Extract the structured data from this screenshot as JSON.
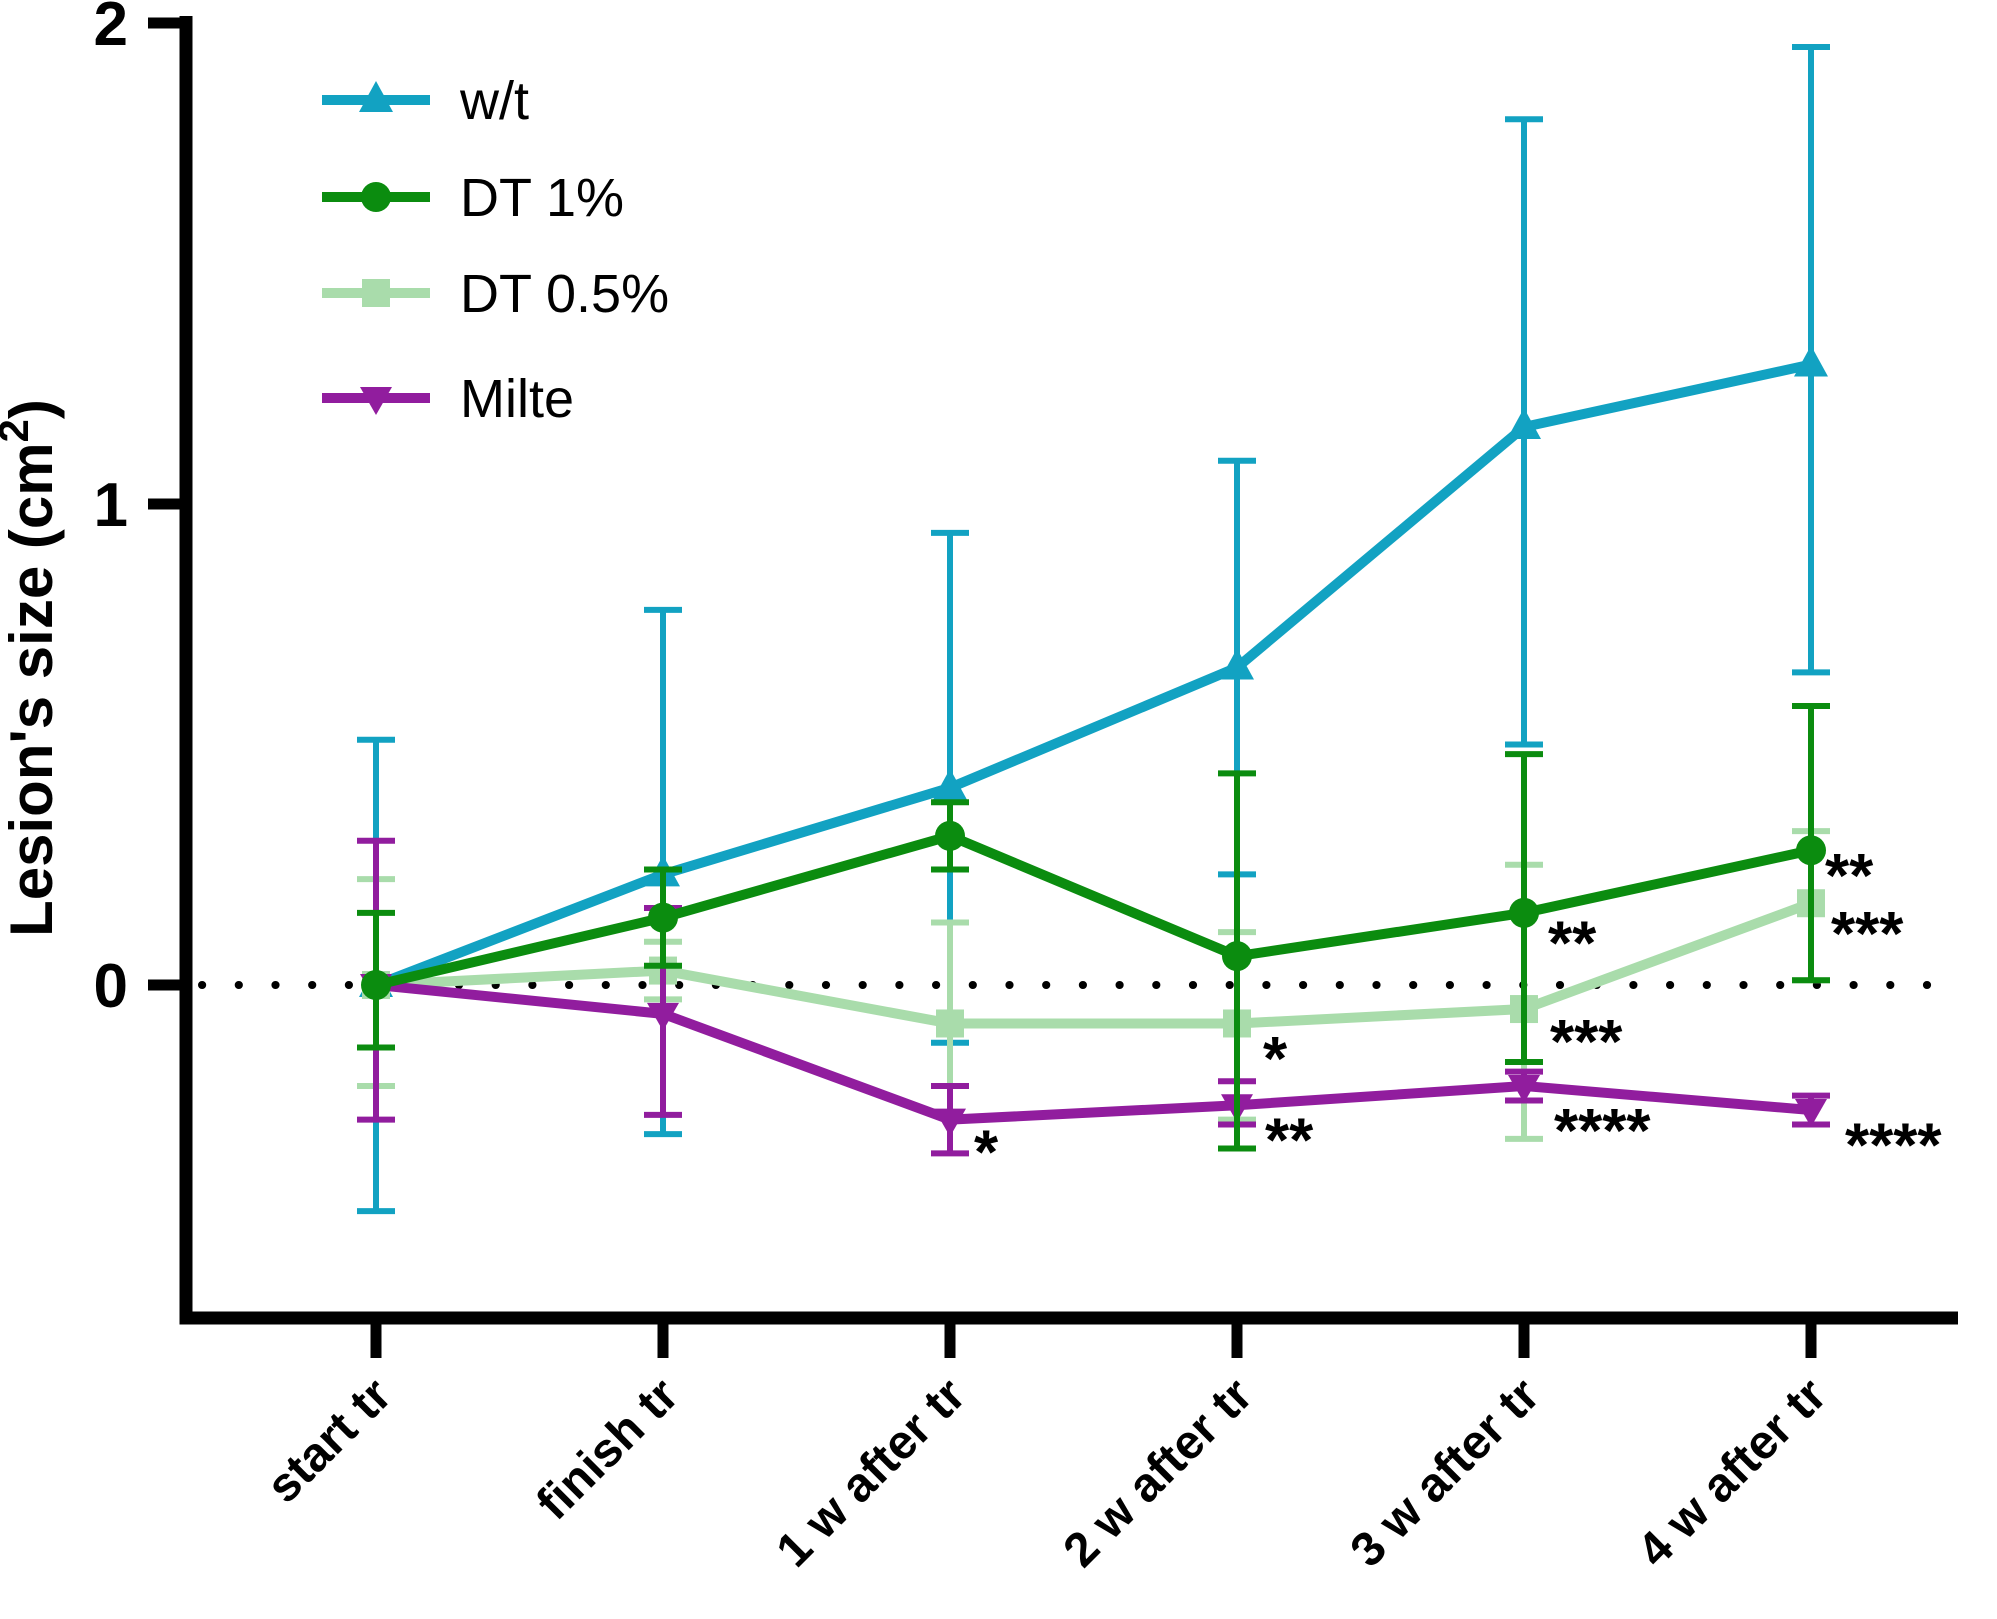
{
  "chart_data": {
    "type": "line",
    "title": "",
    "ylabel": {
      "pre": "Lesion's size (cm",
      "sup": "2",
      "post": ")"
    },
    "xlabel": "",
    "categories": [
      "start tr",
      "finish tr",
      "1 w after tr",
      "2 w after tr",
      "3 w after tr",
      "4 w after tr"
    ],
    "y_ticks": [
      {
        "label": "2",
        "value": 2
      },
      {
        "label": "1",
        "value": 1
      },
      {
        "label": "0",
        "value": 0
      }
    ],
    "ylim": [
      -0.69,
      2.01
    ],
    "zero_line_style": "dotted",
    "grid": false,
    "legend_position": "top-left",
    "legend": [
      "w/t",
      "DT 1%",
      "DT 0.5%",
      "Milte"
    ],
    "series": [
      {
        "name": "w/t",
        "color": "#12a2c2",
        "marker": "triangle-up",
        "values": [
          0.0,
          0.23,
          0.41,
          0.66,
          1.16,
          1.29
        ],
        "err_up": [
          0.51,
          0.55,
          0.53,
          0.43,
          0.64,
          0.66
        ],
        "err_down": [
          0.47,
          0.54,
          0.53,
          0.43,
          0.66,
          0.64
        ]
      },
      {
        "name": "DT 1%",
        "color": "#0b8c0f",
        "marker": "circle",
        "values": [
          0.0,
          0.14,
          0.31,
          0.06,
          0.15,
          0.28
        ],
        "err_up": [
          0.15,
          0.1,
          0.07,
          0.38,
          0.33,
          0.3
        ],
        "err_down": [
          0.13,
          0.1,
          0.07,
          0.4,
          0.31,
          0.27
        ]
      },
      {
        "name": "DT 0.5%",
        "color": "#a9dcab",
        "marker": "square",
        "values": [
          0.0,
          0.03,
          -0.08,
          -0.08,
          -0.05,
          0.17
        ],
        "err_up": [
          0.22,
          0.06,
          0.21,
          0.19,
          0.3,
          0.15
        ],
        "err_down": [
          0.21,
          0.06,
          0.13,
          0.2,
          0.27,
          0.16
        ]
      },
      {
        "name": "Milte",
        "color": "#911d9e",
        "marker": "triangle-down",
        "values": [
          0.0,
          -0.06,
          -0.28,
          -0.25,
          -0.21,
          -0.26
        ],
        "err_up": [
          0.3,
          0.22,
          0.07,
          0.05,
          0.03,
          0.03
        ],
        "err_down": [
          0.28,
          0.21,
          0.07,
          0.04,
          0.03,
          0.03
        ]
      }
    ],
    "annotations": [
      {
        "text": "*",
        "category": 2,
        "value": -0.33,
        "dx": 24
      },
      {
        "text": "*",
        "category": 3,
        "value": -0.135,
        "dx": 26
      },
      {
        "text": "**",
        "category": 3,
        "value": -0.305,
        "dx": 28
      },
      {
        "text": "**",
        "category": 4,
        "value": 0.105,
        "dx": 24
      },
      {
        "text": "***",
        "category": 4,
        "value": -0.1,
        "dx": 26
      },
      {
        "text": "****",
        "category": 4,
        "value": -0.285,
        "dx": 30
      },
      {
        "text": "**",
        "category": 5,
        "value": 0.245,
        "dx": 14
      },
      {
        "text": "***",
        "category": 5,
        "value": 0.125,
        "dx": 20
      },
      {
        "text": "****",
        "category": 5,
        "value": -0.315,
        "dx": 34
      }
    ]
  }
}
